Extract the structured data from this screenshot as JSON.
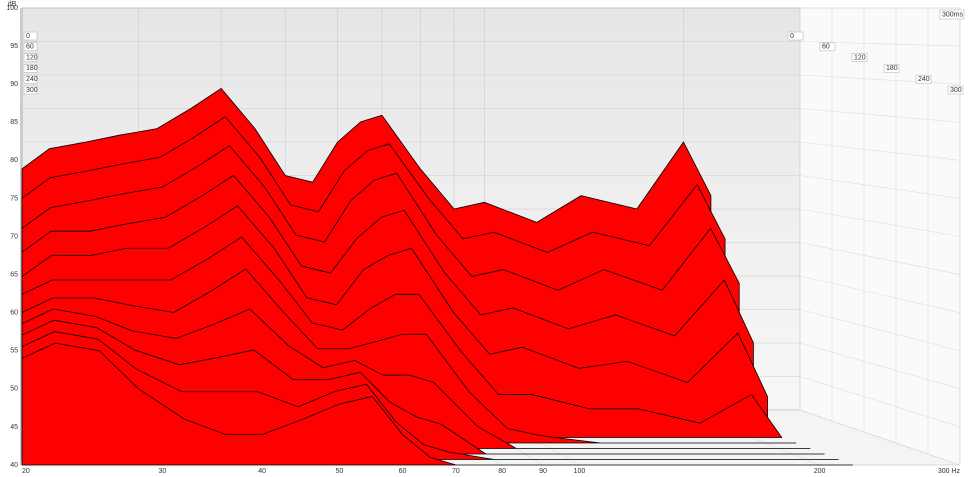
{
  "chart_data": {
    "type": "waterfall",
    "ylabel": "dB",
    "zlabel": "300ms",
    "color": "#ff0000",
    "x": [
      20,
      22,
      25,
      28,
      32,
      36,
      40,
      45,
      50,
      55,
      60,
      65,
      70,
      80,
      90,
      100,
      120,
      140,
      170,
      200,
      220
    ],
    "xlim": [
      20,
      300
    ],
    "xticks": [
      20,
      30,
      40,
      50,
      60,
      70,
      80,
      90,
      100,
      200,
      {
        "value": 300,
        "label": "300 Hz"
      }
    ],
    "log_x": true,
    "ylim": [
      40,
      100
    ],
    "yticks": [
      40,
      45,
      50,
      55,
      60,
      65,
      70,
      75,
      80,
      85,
      90,
      95,
      100
    ],
    "zlim": [
      0,
      300
    ],
    "zticks": [
      0,
      60,
      120,
      180,
      240,
      300
    ],
    "z": [
      0,
      30,
      60,
      90,
      120,
      150,
      180,
      210,
      240,
      270,
      300
    ],
    "grid": true,
    "series": [
      {
        "values": [
          76,
          79,
          80,
          81,
          82,
          85,
          88,
          82,
          75,
          74,
          80,
          83,
          84,
          76,
          70,
          71,
          68,
          72,
          70,
          80,
          72
        ]
      },
      {
        "values": [
          72,
          75,
          76,
          77,
          78,
          81,
          84,
          78,
          71,
          70,
          76,
          79,
          80,
          72,
          66,
          67,
          64,
          67,
          65,
          74,
          66
        ]
      },
      {
        "values": [
          68,
          71,
          72,
          73,
          74,
          77,
          80,
          74,
          67,
          66,
          72,
          75,
          76,
          67,
          61,
          62,
          59,
          62,
          59,
          68,
          60
        ]
      },
      {
        "values": [
          65,
          68,
          68,
          69,
          70,
          73,
          76,
          70,
          63,
          62,
          67,
          70,
          71,
          62,
          56,
          57,
          54,
          56,
          53,
          61,
          52
        ]
      },
      {
        "values": [
          62,
          65,
          65,
          66,
          66,
          69,
          72,
          66,
          59,
          58,
          63,
          65,
          66,
          57,
          51,
          52,
          49,
          50,
          47,
          54,
          45
        ]
      },
      {
        "values": [
          60,
          62,
          62,
          62,
          62,
          65,
          68,
          62,
          56,
          55,
          58,
          60,
          60,
          52,
          46,
          46,
          44,
          44,
          42,
          46,
          40
        ]
      },
      {
        "values": [
          58,
          60,
          60,
          59,
          58,
          61,
          64,
          58,
          53,
          53,
          54,
          55,
          55,
          47,
          42,
          41,
          40,
          40,
          40,
          40,
          40
        ]
      },
      {
        "values": [
          57,
          59,
          58,
          56,
          55,
          57,
          59,
          54,
          51,
          52,
          50,
          50,
          49,
          43,
          40,
          40,
          40,
          40,
          40,
          40,
          40
        ]
      },
      {
        "values": [
          56,
          58,
          57,
          54,
          52,
          53,
          54,
          50,
          50,
          51,
          47,
          45,
          44,
          40,
          40,
          40,
          40,
          40,
          40,
          40,
          40
        ]
      },
      {
        "values": [
          55,
          57,
          56,
          52,
          49,
          49,
          49,
          47,
          49,
          50,
          45,
          42,
          41,
          40,
          40,
          40,
          40,
          40,
          40,
          40,
          40
        ]
      },
      {
        "values": [
          54,
          56,
          55,
          50,
          46,
          44,
          44,
          46,
          48,
          49,
          44,
          41,
          40,
          40,
          40,
          40,
          40,
          40,
          40,
          40,
          40
        ]
      }
    ]
  }
}
